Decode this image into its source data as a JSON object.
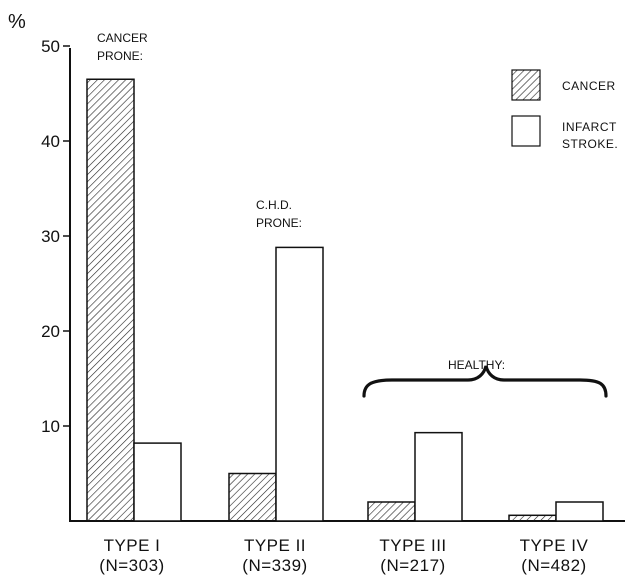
{
  "chart_data": {
    "type": "bar",
    "ylabel": "%",
    "ylim": [
      0,
      50
    ],
    "yticks": [
      10,
      20,
      30,
      40,
      50
    ],
    "categories": [
      "TYPE I",
      "TYPE II",
      "TYPE III",
      "TYPE IV"
    ],
    "category_sublabels": [
      "(N=303)",
      "(N=339)",
      "(N=217)",
      "(N=482)"
    ],
    "series": [
      {
        "name": "CANCER",
        "values": [
          46.5,
          5.0,
          2.0,
          0.6
        ]
      },
      {
        "name": "INFARCT STROKE.",
        "values": [
          8.2,
          28.8,
          9.3,
          2.0
        ]
      }
    ],
    "annotations": {
      "cancer_prone": [
        "CANCER",
        "PRONE:"
      ],
      "chd_prone": [
        "C.H.D.",
        "PRONE:"
      ],
      "healthy": "HEALTHY:"
    },
    "legend": {
      "placement": "top-right",
      "cancer_label": "CANCER",
      "stroke_label": [
        "INFARCT",
        "STROKE."
      ]
    },
    "grid": false
  }
}
